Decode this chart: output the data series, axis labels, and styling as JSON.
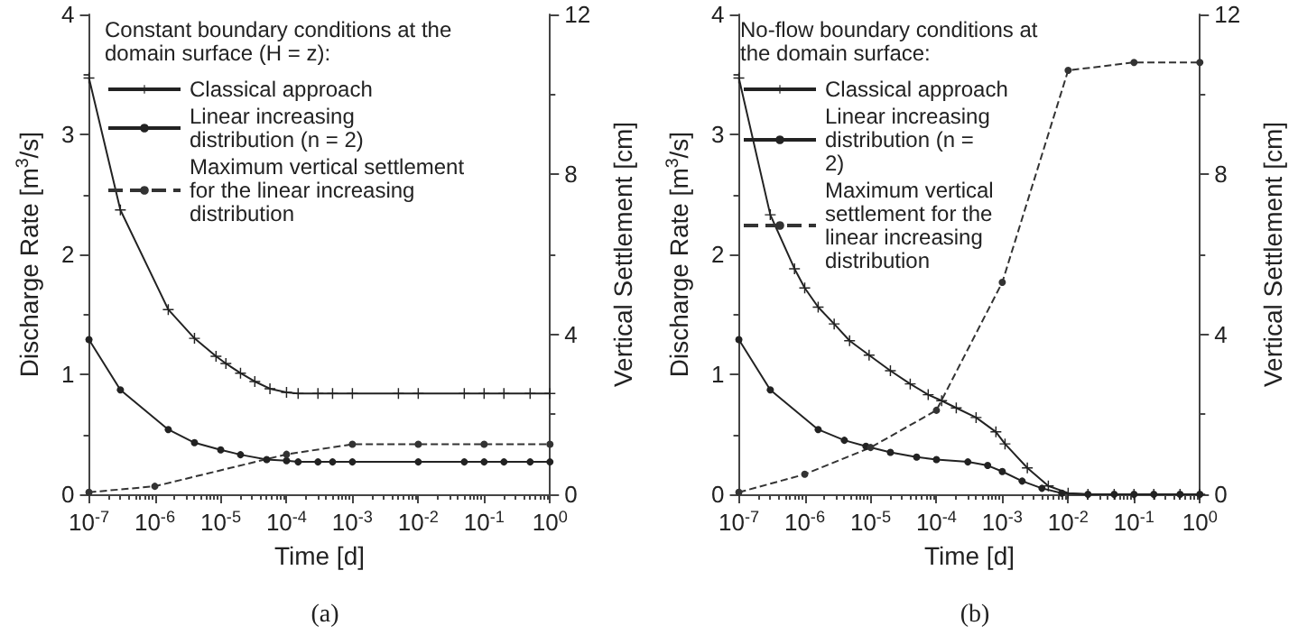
{
  "chart_data": [
    {
      "type": "line",
      "title": "(a)",
      "xlabel": "Time [d]",
      "ylabel": "Discharge Rate [m$^{3}$/s]",
      "y2label": "Vertical Settlement [cm]",
      "legend_title": "Constant boundary conditions at the domain surface (H = z):",
      "legend": "top",
      "log": "x",
      "grid": false,
      "xlim": [
        1e-07,
        1
      ],
      "ylim": [
        0,
        4
      ],
      "y2lim": [
        0,
        12
      ],
      "xticks": [
        {
          "value": 1e-07,
          "label": "10$^{-7}$"
        },
        {
          "value": 1e-06,
          "label": "10$^{-6}$"
        },
        {
          "value": 1e-05,
          "label": "10$^{-5}$"
        },
        {
          "value": 0.0001,
          "label": "10$^{-4}$"
        },
        {
          "value": 0.001,
          "label": "10$^{-3}$"
        },
        {
          "value": 0.01,
          "label": "10$^{-2}$"
        },
        {
          "value": 0.1,
          "label": "10$^{-1}$"
        },
        {
          "value": 1,
          "label": "10$^{0}$"
        }
      ],
      "yticks": [
        0,
        1,
        2,
        3,
        4
      ],
      "y2ticks": [
        0,
        4,
        8,
        12
      ],
      "series": [
        {
          "name": "Classical approach",
          "color": "#222222",
          "marker": "cross",
          "line_style": "solid",
          "x": [
            1e-07,
            3e-07,
            1.6e-06,
            4e-06,
            8.5e-06,
            1.2e-05,
            2e-05,
            3.3e-05,
            5.6e-05,
            0.0001,
            0.00015,
            0.0003,
            0.0005,
            0.001,
            0.005,
            0.01,
            0.05,
            0.1,
            0.2,
            0.5,
            1
          ],
          "values": [
            3.47,
            2.37,
            1.54,
            1.3,
            1.15,
            1.09,
            1.01,
            0.94,
            0.88,
            0.85,
            0.84,
            0.84,
            0.84,
            0.84,
            0.84,
            0.84,
            0.84,
            0.84,
            0.84,
            0.84,
            0.84
          ]
        },
        {
          "name": "Linear increasing distribution (n = 2)",
          "color": "#222222",
          "marker": "circle",
          "line_style": "solid",
          "x": [
            1e-07,
            3e-07,
            1.6e-06,
            4e-06,
            1e-05,
            2e-05,
            5e-05,
            0.0001,
            0.00015,
            0.0003,
            0.0005,
            0.001,
            0.01,
            0.05,
            0.1,
            0.2,
            0.5,
            1
          ],
          "values": [
            1.29,
            0.87,
            0.54,
            0.43,
            0.37,
            0.33,
            0.29,
            0.28,
            0.27,
            0.27,
            0.27,
            0.27,
            0.27,
            0.27,
            0.27,
            0.27,
            0.27,
            0.27
          ]
        },
        {
          "name": "Maximum vertical settlement for the linear increasing distribution",
          "color": "#333333",
          "marker": "circle",
          "line_style": "dashed",
          "axis": "y2",
          "x": [
            1e-07,
            1e-06,
            0.0001,
            0.001,
            0.01,
            0.1,
            1
          ],
          "values": [
            0.05,
            0.2,
            1.0,
            1.25,
            1.25,
            1.25,
            1.25
          ]
        }
      ]
    },
    {
      "type": "line",
      "title": "(b)",
      "xlabel": "Time [d]",
      "ylabel": "Discharge Rate [m$^{3}$/s]",
      "y2label": "Vertical Settlement [cm]",
      "legend_title": "No-flow boundary conditions at the domain surface:",
      "legend": "top left",
      "log": "x",
      "grid": false,
      "xlim": [
        1e-07,
        1
      ],
      "ylim": [
        0,
        4
      ],
      "y2lim": [
        0,
        12
      ],
      "xticks": [
        {
          "value": 1e-07,
          "label": "10$^{-7}$"
        },
        {
          "value": 1e-06,
          "label": "10$^{-6}$"
        },
        {
          "value": 1e-05,
          "label": "10$^{-5}$"
        },
        {
          "value": 0.0001,
          "label": "10$^{-4}$"
        },
        {
          "value": 0.001,
          "label": "10$^{-3}$"
        },
        {
          "value": 0.01,
          "label": "10$^{-2}$"
        },
        {
          "value": 0.1,
          "label": "10$^{-1}$"
        },
        {
          "value": 1,
          "label": "10$^{0}$"
        }
      ],
      "yticks": [
        0,
        1,
        2,
        3,
        4
      ],
      "y2ticks": [
        0,
        4,
        8,
        12
      ],
      "series": [
        {
          "name": "Classical approach",
          "color": "#222222",
          "marker": "cross",
          "line_style": "solid",
          "x": [
            1e-07,
            3e-07,
            7e-07,
            1e-06,
            1.6e-06,
            2.8e-06,
            4.8e-06,
            9.5e-06,
            2e-05,
            4e-05,
            7.5e-05,
            0.00012,
            0.0002,
            0.0004,
            0.0008,
            0.0011,
            0.0024,
            0.005,
            0.01,
            0.02,
            0.05,
            0.1,
            0.2,
            0.5,
            1
          ],
          "values": [
            3.47,
            2.33,
            1.88,
            1.72,
            1.56,
            1.42,
            1.28,
            1.16,
            1.03,
            0.92,
            0.83,
            0.78,
            0.72,
            0.64,
            0.52,
            0.42,
            0.22,
            0.07,
            0.01,
            0,
            0,
            0,
            0,
            0,
            0
          ]
        },
        {
          "name": "Linear increasing distribution (n = 2)",
          "color": "#222222",
          "marker": "circle",
          "line_style": "solid",
          "x": [
            1e-07,
            3e-07,
            1.6e-06,
            4e-06,
            8.5e-06,
            2e-05,
            5e-05,
            0.0001,
            0.0003,
            0.0006,
            0.001,
            0.002,
            0.004,
            0.008,
            0.02,
            0.05,
            0.1,
            0.2,
            0.5,
            1
          ],
          "values": [
            1.29,
            0.87,
            0.54,
            0.45,
            0.4,
            0.35,
            0.31,
            0.29,
            0.27,
            0.24,
            0.19,
            0.11,
            0.05,
            0.01,
            0,
            0,
            0,
            0,
            0,
            0
          ]
        },
        {
          "name": "Maximum vertical settlement for the linear increasing distribution",
          "color": "#333333",
          "marker": "circle",
          "line_style": "dashed",
          "axis": "y2",
          "x": [
            1e-07,
            1e-06,
            1e-05,
            0.0001,
            0.001,
            0.01,
            0.1,
            1
          ],
          "values": [
            0.05,
            0.5,
            1.17,
            2.1,
            5.3,
            10.6,
            10.8,
            10.8
          ]
        }
      ]
    }
  ]
}
